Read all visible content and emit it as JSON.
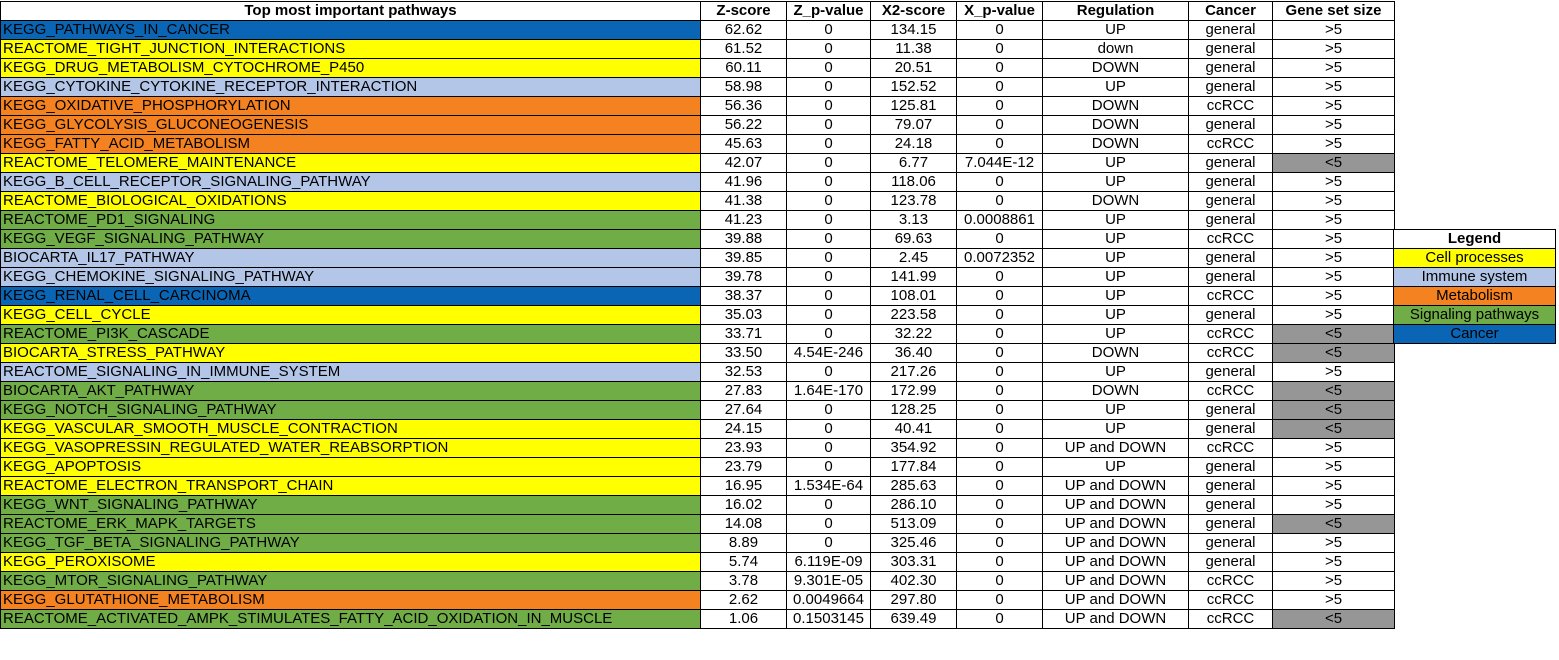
{
  "colors": {
    "cell_processes": "#ffff00",
    "immune_system": "#b4c6e7",
    "metabolism": "#f58220",
    "signaling_pathways": "#70ad47",
    "cancer": "#0a66b5",
    "small_gene_set": "#969696"
  },
  "headers": [
    "Top most important pathways",
    "Z-score",
    "Z_p-value",
    "X2-score",
    "X_p-value",
    "Regulation",
    "Cancer",
    "Gene set size"
  ],
  "rows": [
    {
      "pathway": "KEGG_PATHWAYS_IN_CANCER",
      "category": "cancer",
      "z_score": "62.62",
      "z_p": "0",
      "x2": "134.15",
      "x_p": "0",
      "regulation": "UP",
      "cancer": "general",
      "size": ">5",
      "small": false
    },
    {
      "pathway": "REACTOME_TIGHT_JUNCTION_INTERACTIONS",
      "category": "cell_processes",
      "z_score": "61.52",
      "z_p": "0",
      "x2": "11.38",
      "x_p": "0",
      "regulation": "down",
      "cancer": "general",
      "size": ">5",
      "small": false
    },
    {
      "pathway": "KEGG_DRUG_METABOLISM_CYTOCHROME_P450",
      "category": "cell_processes",
      "z_score": "60.11",
      "z_p": "0",
      "x2": "20.51",
      "x_p": "0",
      "regulation": "DOWN",
      "cancer": "general",
      "size": ">5",
      "small": false
    },
    {
      "pathway": "KEGG_CYTOKINE_CYTOKINE_RECEPTOR_INTERACTION",
      "category": "immune_system",
      "z_score": "58.98",
      "z_p": "0",
      "x2": "152.52",
      "x_p": "0",
      "regulation": "UP",
      "cancer": "general",
      "size": ">5",
      "small": false
    },
    {
      "pathway": "KEGG_OXIDATIVE_PHOSPHORYLATION",
      "category": "metabolism",
      "z_score": "56.36",
      "z_p": "0",
      "x2": "125.81",
      "x_p": "0",
      "regulation": "DOWN",
      "cancer": "ccRCC",
      "size": ">5",
      "small": false
    },
    {
      "pathway": "KEGG_GLYCOLYSIS_GLUCONEOGENESIS",
      "category": "metabolism",
      "z_score": "56.22",
      "z_p": "0",
      "x2": "79.07",
      "x_p": "0",
      "regulation": "DOWN",
      "cancer": "general",
      "size": ">5",
      "small": false
    },
    {
      "pathway": "KEGG_FATTY_ACID_METABOLISM",
      "category": "metabolism",
      "z_score": "45.63",
      "z_p": "0",
      "x2": "24.18",
      "x_p": "0",
      "regulation": "DOWN",
      "cancer": "ccRCC",
      "size": ">5",
      "small": false
    },
    {
      "pathway": "REACTOME_TELOMERE_MAINTENANCE",
      "category": "cell_processes",
      "z_score": "42.07",
      "z_p": "0",
      "x2": "6.77",
      "x_p": "7.044E-12",
      "regulation": "UP",
      "cancer": "general",
      "size": "<5",
      "small": true
    },
    {
      "pathway": "KEGG_B_CELL_RECEPTOR_SIGNALING_PATHWAY",
      "category": "immune_system",
      "z_score": "41.96",
      "z_p": "0",
      "x2": "118.06",
      "x_p": "0",
      "regulation": "UP",
      "cancer": "general",
      "size": ">5",
      "small": false
    },
    {
      "pathway": "REACTOME_BIOLOGICAL_OXIDATIONS",
      "category": "cell_processes",
      "z_score": "41.38",
      "z_p": "0",
      "x2": "123.78",
      "x_p": "0",
      "regulation": "DOWN",
      "cancer": "general",
      "size": ">5",
      "small": false
    },
    {
      "pathway": "REACTOME_PD1_SIGNALING",
      "category": "signaling_pathways",
      "z_score": "41.23",
      "z_p": "0",
      "x2": "3.13",
      "x_p": "0.0008861",
      "regulation": "UP",
      "cancer": "general",
      "size": ">5",
      "small": false
    },
    {
      "pathway": "KEGG_VEGF_SIGNALING_PATHWAY",
      "category": "signaling_pathways",
      "z_score": "39.88",
      "z_p": "0",
      "x2": "69.63",
      "x_p": "0",
      "regulation": "UP",
      "cancer": "ccRCC",
      "size": ">5",
      "small": false
    },
    {
      "pathway": "BIOCARTA_IL17_PATHWAY",
      "category": "immune_system",
      "z_score": "39.85",
      "z_p": "0",
      "x2": "2.45",
      "x_p": "0.0072352",
      "regulation": "UP",
      "cancer": "general",
      "size": ">5",
      "small": false
    },
    {
      "pathway": "KEGG_CHEMOKINE_SIGNALING_PATHWAY",
      "category": "immune_system",
      "z_score": "39.78",
      "z_p": "0",
      "x2": "141.99",
      "x_p": "0",
      "regulation": "UP",
      "cancer": "general",
      "size": ">5",
      "small": false
    },
    {
      "pathway": "KEGG_RENAL_CELL_CARCINOMA",
      "category": "cancer",
      "z_score": "38.37",
      "z_p": "0",
      "x2": "108.01",
      "x_p": "0",
      "regulation": "UP",
      "cancer": "ccRCC",
      "size": ">5",
      "small": false
    },
    {
      "pathway": "KEGG_CELL_CYCLE",
      "category": "cell_processes",
      "z_score": "35.03",
      "z_p": "0",
      "x2": "223.58",
      "x_p": "0",
      "regulation": "UP",
      "cancer": "general",
      "size": ">5",
      "small": false
    },
    {
      "pathway": "REACTOME_PI3K_CASCADE",
      "category": "signaling_pathways",
      "z_score": "33.71",
      "z_p": "0",
      "x2": "32.22",
      "x_p": "0",
      "regulation": "UP",
      "cancer": "ccRCC",
      "size": "<5",
      "small": true
    },
    {
      "pathway": "BIOCARTA_STRESS_PATHWAY",
      "category": "cell_processes",
      "z_score": "33.50",
      "z_p": "4.54E-246",
      "x2": "36.40",
      "x_p": "0",
      "regulation": "DOWN",
      "cancer": "ccRCC",
      "size": "<5",
      "small": true
    },
    {
      "pathway": "REACTOME_SIGNALING_IN_IMMUNE_SYSTEM",
      "category": "immune_system",
      "z_score": "32.53",
      "z_p": "0",
      "x2": "217.26",
      "x_p": "0",
      "regulation": "UP",
      "cancer": "general",
      "size": ">5",
      "small": false
    },
    {
      "pathway": "BIOCARTA_AKT_PATHWAY",
      "category": "signaling_pathways",
      "z_score": "27.83",
      "z_p": "1.64E-170",
      "x2": "172.99",
      "x_p": "0",
      "regulation": "DOWN",
      "cancer": "ccRCC",
      "size": "<5",
      "small": true
    },
    {
      "pathway": "KEGG_NOTCH_SIGNALING_PATHWAY",
      "category": "signaling_pathways",
      "z_score": "27.64",
      "z_p": "0",
      "x2": "128.25",
      "x_p": "0",
      "regulation": "UP",
      "cancer": "general",
      "size": "<5",
      "small": true
    },
    {
      "pathway": "KEGG_VASCULAR_SMOOTH_MUSCLE_CONTRACTION",
      "category": "cell_processes",
      "z_score": "24.15",
      "z_p": "0",
      "x2": "40.41",
      "x_p": "0",
      "regulation": "UP",
      "cancer": "general",
      "size": "<5",
      "small": true
    },
    {
      "pathway": "KEGG_VASOPRESSIN_REGULATED_WATER_REABSORPTION",
      "category": "cell_processes",
      "z_score": "23.93",
      "z_p": "0",
      "x2": "354.92",
      "x_p": "0",
      "regulation": "UP and DOWN",
      "cancer": "ccRCC",
      "size": ">5",
      "small": false
    },
    {
      "pathway": "KEGG_APOPTOSIS",
      "category": "cell_processes",
      "z_score": "23.79",
      "z_p": "0",
      "x2": "177.84",
      "x_p": "0",
      "regulation": "UP",
      "cancer": "general",
      "size": ">5",
      "small": false
    },
    {
      "pathway": "REACTOME_ELECTRON_TRANSPORT_CHAIN",
      "category": "cell_processes",
      "z_score": "16.95",
      "z_p": "1.534E-64",
      "x2": "285.63",
      "x_p": "0",
      "regulation": "UP and DOWN",
      "cancer": "general",
      "size": ">5",
      "small": false
    },
    {
      "pathway": "KEGG_WNT_SIGNALING_PATHWAY",
      "category": "signaling_pathways",
      "z_score": "16.02",
      "z_p": "0",
      "x2": "286.10",
      "x_p": "0",
      "regulation": "UP and DOWN",
      "cancer": "general",
      "size": ">5",
      "small": false
    },
    {
      "pathway": "REACTOME_ERK_MAPK_TARGETS",
      "category": "signaling_pathways",
      "z_score": "14.08",
      "z_p": "0",
      "x2": "513.09",
      "x_p": "0",
      "regulation": "UP and DOWN",
      "cancer": "general",
      "size": "<5",
      "small": true
    },
    {
      "pathway": "KEGG_TGF_BETA_SIGNALING_PATHWAY",
      "category": "signaling_pathways",
      "z_score": "8.89",
      "z_p": "0",
      "x2": "325.46",
      "x_p": "0",
      "regulation": "UP and DOWN",
      "cancer": "general",
      "size": ">5",
      "small": false
    },
    {
      "pathway": "KEGG_PEROXISOME",
      "category": "cell_processes",
      "z_score": "5.74",
      "z_p": "6.119E-09",
      "x2": "303.31",
      "x_p": "0",
      "regulation": "UP and DOWN",
      "cancer": "general",
      "size": ">5",
      "small": false
    },
    {
      "pathway": "KEGG_MTOR_SIGNALING_PATHWAY",
      "category": "signaling_pathways",
      "z_score": "3.78",
      "z_p": "9.301E-05",
      "x2": "402.30",
      "x_p": "0",
      "regulation": "UP and DOWN",
      "cancer": "ccRCC",
      "size": ">5",
      "small": false
    },
    {
      "pathway": "KEGG_GLUTATHIONE_METABOLISM",
      "category": "metabolism",
      "z_score": "2.62",
      "z_p": "0.0049664",
      "x2": "297.80",
      "x_p": "0",
      "regulation": "UP and DOWN",
      "cancer": "ccRCC",
      "size": ">5",
      "small": false
    },
    {
      "pathway": "REACTOME_ACTIVATED_AMPK_STIMULATES_FATTY_ACID_OXIDATION_IN_MUSCLE",
      "category": "signaling_pathways",
      "z_score": "1.06",
      "z_p": "0.1503145",
      "x2": "639.49",
      "x_p": "0",
      "regulation": "UP and DOWN",
      "cancer": "ccRCC",
      "size": "<5",
      "small": true
    }
  ],
  "legend": {
    "title": "Legend",
    "items": [
      {
        "label": "Cell processes",
        "category": "cell_processes"
      },
      {
        "label": "Immune system",
        "category": "immune_system"
      },
      {
        "label": "Metabolism",
        "category": "metabolism"
      },
      {
        "label": "Signaling pathways",
        "category": "signaling_pathways"
      },
      {
        "label": "Cancer",
        "category": "cancer"
      }
    ]
  }
}
